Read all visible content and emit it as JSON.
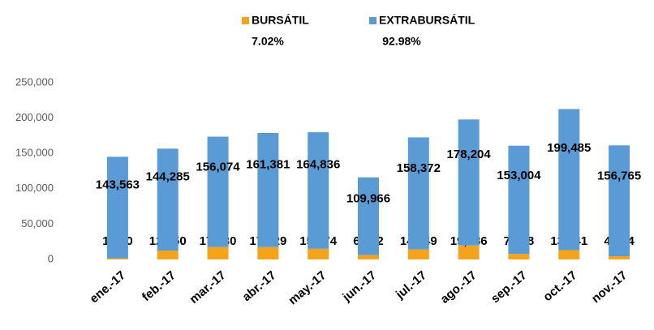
{
  "chart_data": {
    "type": "stacked_bar",
    "categories": [
      "ene.-17",
      "feb.-17",
      "mar.-17",
      "abr.-17",
      "may.-17",
      "jun.-17",
      "jul.-17",
      "ago.-17",
      "sep.-17",
      "oct.-17",
      "nov.-17"
    ],
    "series": [
      {
        "name": "BURSÁTIL",
        "share_label": "7.02%",
        "color": "#f5a31a",
        "values": [
          1650,
          12450,
          17630,
          17529,
          15074,
          6182,
          14249,
          19786,
          7888,
          13241,
          4564
        ],
        "value_labels": [
          "1,650",
          "12,450",
          "17,630",
          "17,529",
          "15,074",
          "6,182",
          "14,249",
          "19,786",
          "7,888",
          "13,241",
          "4,564"
        ]
      },
      {
        "name": "EXTRABURSÁTIL",
        "share_label": "92.98%",
        "color": "#5b9bd5",
        "values": [
          143563,
          144285,
          156074,
          161381,
          164836,
          109966,
          158372,
          178204,
          153004,
          199485,
          156765
        ],
        "value_labels": [
          "143,563",
          "144,285",
          "156,074",
          "161,381",
          "164,836",
          "109,966",
          "158,372",
          "178,204",
          "153,004",
          "199,485",
          "156,765"
        ]
      }
    ],
    "ylim": [
      0,
      250000
    ],
    "yticks": [
      0,
      {
        "value": 50000,
        "label": "50,000"
      },
      {
        "value": 100000,
        "label": "100,000"
      },
      {
        "value": 150000,
        "label": "150,000"
      },
      {
        "value": 200000,
        "label": "200,000"
      },
      {
        "value": 250000,
        "label": "250,000"
      }
    ],
    "grid": false
  }
}
